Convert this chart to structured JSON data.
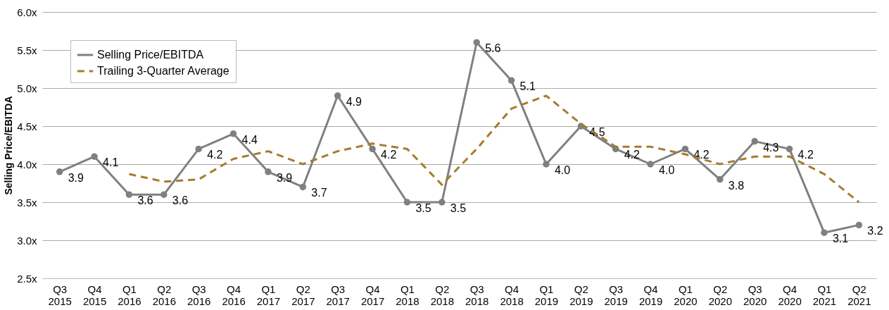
{
  "chart_data": {
    "type": "line",
    "ylabel": "Selling Price/EBITDA",
    "categories": [
      "Q3 2015",
      "Q4 2015",
      "Q1 2016",
      "Q2 2016",
      "Q3 2016",
      "Q4 2016",
      "Q1 2017",
      "Q2 2017",
      "Q3 2017",
      "Q4 2017",
      "Q1 2018",
      "Q2 2018",
      "Q3 2018",
      "Q4 2018",
      "Q1 2019",
      "Q2 2019",
      "Q3 2019",
      "Q4 2019",
      "Q1 2020",
      "Q2 2020",
      "Q3 2020",
      "Q4 2020",
      "Q1 2021",
      "Q2 2021"
    ],
    "series": [
      {
        "name": "Selling Price/EBITDA",
        "color": "#808080",
        "marker": "circle",
        "line_style": "solid",
        "values": [
          3.9,
          4.1,
          3.6,
          3.6,
          4.2,
          4.4,
          3.9,
          3.7,
          4.9,
          4.2,
          3.5,
          3.5,
          5.6,
          5.1,
          4.0,
          4.5,
          4.2,
          4.0,
          4.2,
          3.8,
          4.3,
          4.2,
          3.1,
          3.2
        ],
        "value_labels": [
          "3.9",
          "4.1",
          "3.6",
          "3.6",
          "4.2",
          "4.4",
          "3.9",
          "3.7",
          "4.9",
          "4.2",
          "3.5",
          "3.5",
          "5.6",
          "5.1",
          "4.0",
          "4.5",
          "4.2",
          "4.0",
          "4.2",
          "3.8",
          "4.3",
          "4.2",
          "3.1",
          "3.2"
        ]
      },
      {
        "name": "Trailing 3-Quarter Average",
        "color": "#a57c2e",
        "marker": "none",
        "line_style": "dashed",
        "values": [
          null,
          null,
          3.87,
          3.77,
          3.8,
          4.07,
          4.17,
          4.0,
          4.17,
          4.27,
          4.2,
          3.73,
          4.2,
          4.73,
          4.9,
          4.53,
          4.23,
          4.23,
          4.13,
          4.0,
          4.1,
          4.1,
          3.87,
          3.5
        ]
      }
    ],
    "ylim": [
      2.5,
      6.0
    ],
    "yticks": [
      {
        "value": 2.5,
        "label": "2.5x"
      },
      {
        "value": 3.0,
        "label": "3.0x"
      },
      {
        "value": 3.5,
        "label": "3.5x"
      },
      {
        "value": 4.0,
        "label": "4.0x"
      },
      {
        "value": 4.5,
        "label": "4.5x"
      },
      {
        "value": 5.0,
        "label": "5.0x"
      },
      {
        "value": 5.5,
        "label": "5.5x"
      },
      {
        "value": 6.0,
        "label": "6.0x"
      }
    ],
    "grid": "y",
    "legend": "top left"
  }
}
